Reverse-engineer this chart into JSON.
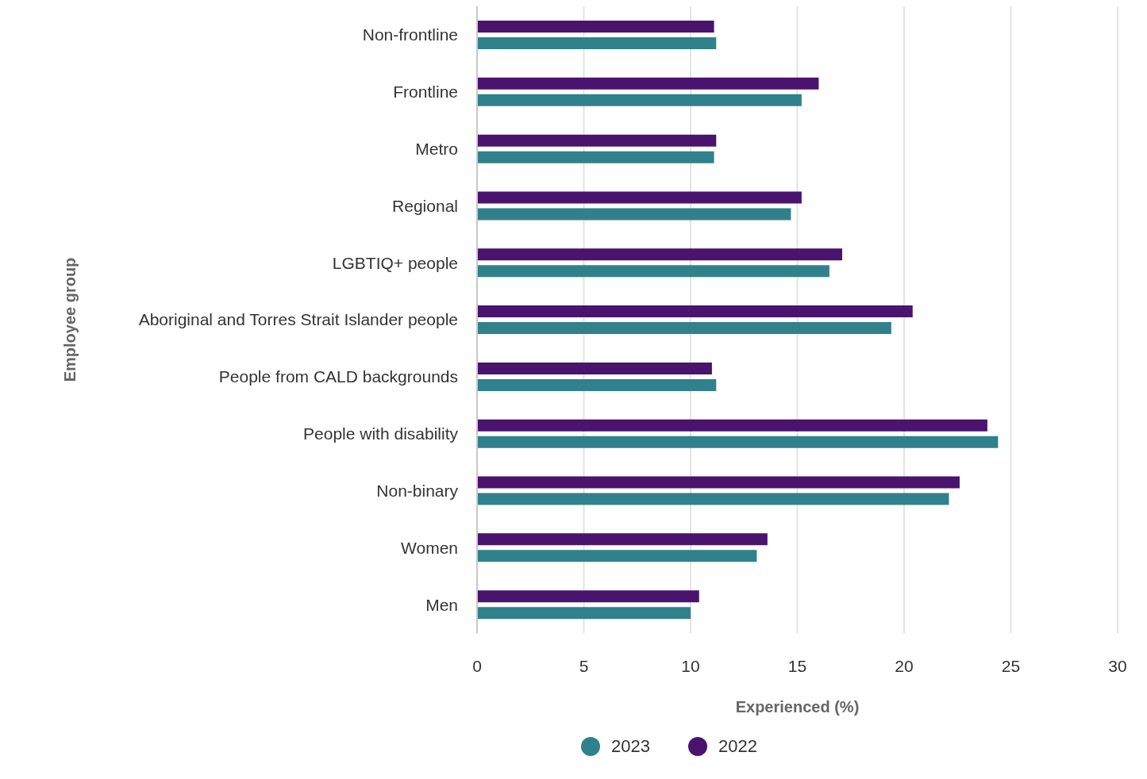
{
  "chart_data": {
    "type": "bar",
    "orientation": "horizontal",
    "xlabel": "Experienced (%)",
    "ylabel": "Employee group",
    "categories": [
      "Non-frontline",
      "Frontline",
      "Metro",
      "Regional",
      "LGBTIQ+ people",
      "Aboriginal and Torres Strait Islander people",
      "People from CALD backgrounds",
      "People with disability",
      "Non-binary",
      "Women",
      "Men"
    ],
    "series": [
      {
        "name": "2023",
        "color": "#30818c",
        "values": [
          11.2,
          15.2,
          11.1,
          14.7,
          16.5,
          19.4,
          11.2,
          24.4,
          22.1,
          13.1,
          10.0
        ]
      },
      {
        "name": "2022",
        "color": "#4a136e",
        "values": [
          11.1,
          16.0,
          11.2,
          15.2,
          17.1,
          20.4,
          11.0,
          23.9,
          22.6,
          13.6,
          10.4
        ]
      }
    ],
    "xlim": [
      0,
      30
    ],
    "xticks": [
      0,
      5,
      10,
      15,
      20,
      25,
      30
    ],
    "grid": "x",
    "legend": "bottom"
  }
}
